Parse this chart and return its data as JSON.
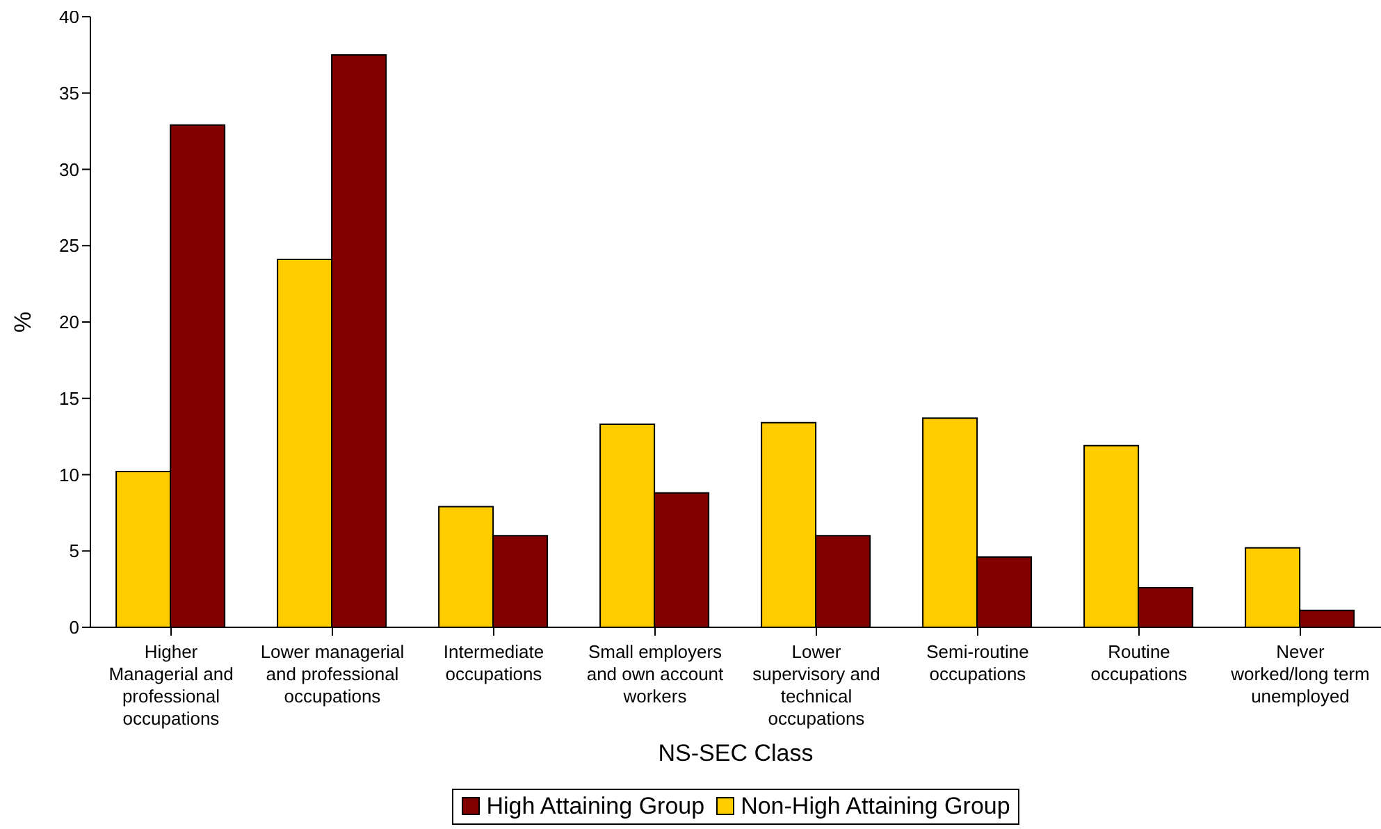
{
  "chart_data": {
    "type": "bar",
    "xlabel": "NS-SEC Class",
    "ylabel": "%",
    "categories": [
      "Higher Managerial and professional occupations",
      "Lower managerial and professional occupations",
      "Intermediate occupations",
      "Small employers and own account workers",
      "Lower supervisory and technical occupations",
      "Semi-routine occupations",
      "Routine occupations",
      "Never worked/long term unemployed"
    ],
    "series": [
      {
        "name": "Non-High Attaining Group",
        "color": "#ffcc00",
        "values": [
          10.2,
          24.1,
          7.9,
          13.3,
          13.4,
          13.7,
          11.9,
          5.2
        ]
      },
      {
        "name": "High Attaining Group",
        "color": "#800000",
        "values": [
          32.9,
          37.5,
          6.0,
          8.8,
          6.0,
          4.6,
          2.6,
          1.1
        ]
      }
    ],
    "ylim": [
      0,
      40
    ],
    "yticks": [
      0,
      5,
      10,
      15,
      20,
      25,
      30,
      35,
      40
    ],
    "grid": false,
    "legend": "bottom"
  }
}
